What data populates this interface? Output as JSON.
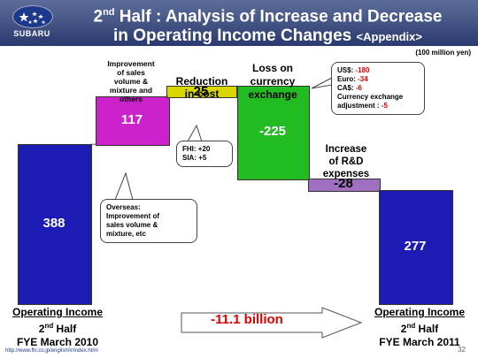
{
  "header": {
    "brand": "SUBARU",
    "title_line1_pre": "2",
    "title_line1_sup": "nd",
    "title_line1_post": " Half : Analysis of Increase and Decrease",
    "title_line2_main": "in Operating Income Changes ",
    "title_line2_small": "<Appendix>"
  },
  "unit": "(100 million yen)",
  "labels": {
    "left_line1": "Operating Income",
    "left_line2_pre": "2",
    "left_line2_sup": "nd",
    "left_line2_post": " Half",
    "left_line3": "FYE March 2010",
    "right_line1": "Operating Income",
    "right_line2_pre": "2",
    "right_line2_sup": "nd",
    "right_line2_post": " Half",
    "right_line3": "FYE March 2011",
    "sales_l1": "Improvement",
    "sales_l2": "of sales",
    "sales_l3": "volume &",
    "sales_l4": "mixture and",
    "sales_l5": "others",
    "cost_l1": "Reduction",
    "cost_l2": "in cost",
    "fx_l1": "Loss on",
    "fx_l2": "currency",
    "fx_l3": "exchange",
    "rd_l1": "Increase",
    "rd_l2": "of R&D",
    "rd_l3": "expenses"
  },
  "callouts": {
    "overseas_l1": "Overseas:",
    "overseas_l2": "Improvement of",
    "overseas_l3": "sales volume &",
    "overseas_l4": "mixture, etc",
    "fhi": "FHI: +20",
    "sia": "SIA: +5",
    "usd_label": "US$: ",
    "usd_value": "-180",
    "euro_label": "Euro: ",
    "euro_value": "-34",
    "cad_label": "CA$: ",
    "cad_value": "-6",
    "adj_l1": "Currency exchange",
    "adj_l2_label": "adjustment : ",
    "adj_l2_value": "-5"
  },
  "total_change": "-11.1 billion",
  "footer": {
    "url": "http://www.fhi.co.jp/english/ir/index.html",
    "page": "32"
  },
  "chart_data": {
    "type": "bar",
    "subtype": "waterfall",
    "unit": "(100 million yen)",
    "categories": [
      "Operating Income 2nd Half FYE March 2010",
      "Improvement of sales volume & mixture and others",
      "Reduction in cost",
      "Loss on currency exchange",
      "Increase of R&D expenses",
      "Operating Income 2nd Half FYE March 2011"
    ],
    "values": [
      388,
      117,
      25,
      -225,
      -28,
      277
    ],
    "value_labels": [
      "388",
      "117",
      "25",
      "-225",
      "-28",
      "277"
    ],
    "colors": [
      "#1c1cb4",
      "#cc22cc",
      "#d8d800",
      "#22bb22",
      "#a070c0",
      "#1c1cb4"
    ]
  }
}
